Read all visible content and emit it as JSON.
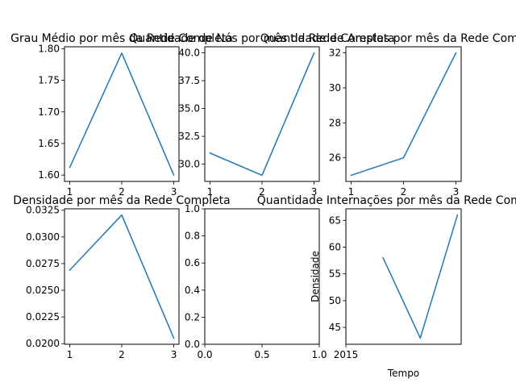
{
  "chart_data": [
    {
      "type": "line",
      "title": "Grau Médio por mês da Rede Completa",
      "x": [
        1,
        2,
        3
      ],
      "y": [
        1.612,
        1.793,
        1.6
      ],
      "xlim": [
        0.9,
        3.1
      ],
      "ylim": [
        1.59,
        1.803
      ],
      "xticks": [
        "1",
        "2",
        "3"
      ],
      "yticks": [
        "1.60",
        "1.65",
        "1.70",
        "1.75",
        "1.80"
      ],
      "xlabel": "",
      "ylabel": ""
    },
    {
      "type": "line",
      "title": "Quantidade de Nós por mês da Rede Completa",
      "x": [
        1,
        2,
        3
      ],
      "y": [
        31,
        29,
        40
      ],
      "xlim": [
        0.9,
        3.1
      ],
      "ylim": [
        28.45,
        40.55
      ],
      "xticks": [
        "1",
        "2",
        "3"
      ],
      "yticks": [
        "30.0",
        "32.5",
        "35.0",
        "37.5",
        "40.0"
      ],
      "xlabel": "",
      "ylabel": ""
    },
    {
      "type": "line",
      "title": "Quantidade de Arestas por mês da Rede Completa",
      "x": [
        1,
        2,
        3
      ],
      "y": [
        25,
        26,
        32
      ],
      "xlim": [
        0.9,
        3.1
      ],
      "ylim": [
        24.65,
        32.35
      ],
      "xticks": [
        "1",
        "2",
        "3"
      ],
      "yticks": [
        "26",
        "28",
        "30",
        "32"
      ],
      "xlabel": "",
      "ylabel": ""
    },
    {
      "type": "line",
      "title": "Densidade por mês da Rede Completa",
      "x": [
        1,
        2,
        3
      ],
      "y": [
        0.02688,
        0.03205,
        0.02051
      ],
      "xlim": [
        0.9,
        3.1
      ],
      "ylim": [
        0.01994,
        0.03263
      ],
      "xticks": [
        "1",
        "2",
        "3"
      ],
      "yticks": [
        "0.0200",
        "0.0225",
        "0.0250",
        "0.0275",
        "0.0300",
        "0.0325"
      ],
      "xlabel": "",
      "ylabel": ""
    },
    {
      "type": "line",
      "title": "",
      "x": [],
      "y": [],
      "xlim": [
        0,
        1
      ],
      "ylim": [
        0,
        1
      ],
      "xticks": [
        "0.0",
        "0.5",
        "1.0"
      ],
      "yticks": [
        "0.0",
        "0.2",
        "0.4",
        "0.6",
        "0.8",
        "1.0"
      ],
      "xlabel": "",
      "ylabel": ""
    },
    {
      "type": "line",
      "title": "Quantidade Internações por mês da Rede Completa",
      "x": [
        1,
        2,
        3
      ],
      "y": [
        58,
        43,
        66
      ],
      "xlim": [
        0,
        3.1
      ],
      "ylim": [
        41.85,
        67.15
      ],
      "xticks": [
        "2015"
      ],
      "yticks": [
        "45",
        "50",
        "55",
        "60",
        "65"
      ],
      "xlabel": "Tempo",
      "ylabel": "Densidade"
    }
  ]
}
